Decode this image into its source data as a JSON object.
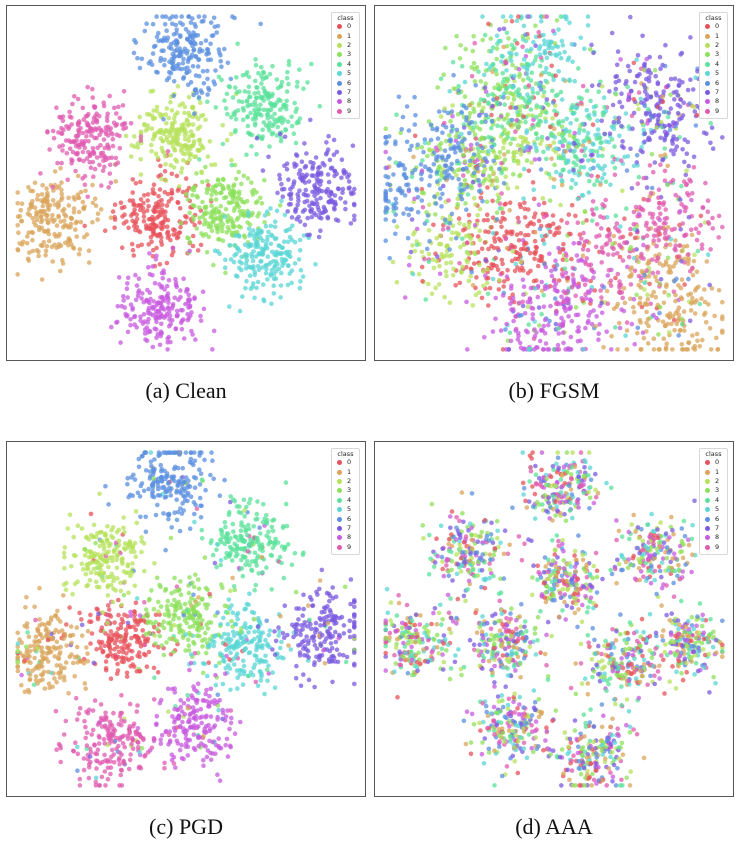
{
  "palette": [
    "#e8505a",
    "#d9a45a",
    "#b5e15a",
    "#8ce05a",
    "#5ae29a",
    "#5ad6d6",
    "#5a8fe0",
    "#7a5ae0",
    "#c85ae0",
    "#e05ab0"
  ],
  "legend": {
    "title": "class",
    "labels": [
      "0",
      "1",
      "2",
      "3",
      "4",
      "5",
      "6",
      "7",
      "8",
      "9"
    ]
  },
  "panels": [
    {
      "caption": "(a) Clean"
    },
    {
      "caption": "(b) FGSM"
    },
    {
      "caption": "(c) PGD"
    },
    {
      "caption": "(d) AAA"
    }
  ],
  "chart_data": [
    {
      "type": "scatter",
      "title": "",
      "xlabel": "",
      "ylabel": "",
      "grid": false,
      "legend_position": "top-right",
      "legend_title": "class",
      "series": [
        {
          "name": "0",
          "cluster_centers": [
            [
              0.42,
              0.6
            ]
          ]
        },
        {
          "name": "1",
          "cluster_centers": [
            [
              0.13,
              0.6
            ]
          ]
        },
        {
          "name": "2",
          "cluster_centers": [
            [
              0.47,
              0.37
            ]
          ]
        },
        {
          "name": "3",
          "cluster_centers": [
            [
              0.61,
              0.57
            ]
          ]
        },
        {
          "name": "4",
          "cluster_centers": [
            [
              0.72,
              0.28
            ]
          ]
        },
        {
          "name": "5",
          "cluster_centers": [
            [
              0.72,
              0.71
            ]
          ]
        },
        {
          "name": "6",
          "cluster_centers": [
            [
              0.5,
              0.13
            ]
          ]
        },
        {
          "name": "7",
          "cluster_centers": [
            [
              0.87,
              0.51
            ]
          ]
        },
        {
          "name": "8",
          "cluster_centers": [
            [
              0.43,
              0.86
            ]
          ]
        },
        {
          "name": "9",
          "cluster_centers": [
            [
              0.23,
              0.37
            ]
          ]
        }
      ]
    },
    {
      "type": "scatter",
      "title": "",
      "xlabel": "",
      "ylabel": "",
      "grid": false,
      "legend_position": "top-right",
      "legend_title": "class",
      "series": [
        {
          "name": "0",
          "cluster_centers": [
            [
              0.34,
              0.67
            ],
            [
              0.44,
              0.7
            ]
          ]
        },
        {
          "name": "1",
          "cluster_centers": [
            [
              0.8,
              0.75
            ],
            [
              0.82,
              0.88
            ]
          ]
        },
        {
          "name": "2",
          "cluster_centers": [
            [
              0.2,
              0.7
            ],
            [
              0.38,
              0.4
            ]
          ]
        },
        {
          "name": "3",
          "cluster_centers": [
            [
              0.25,
              0.45
            ],
            [
              0.35,
              0.25
            ]
          ]
        },
        {
          "name": "4",
          "cluster_centers": [
            [
              0.4,
              0.25
            ],
            [
              0.55,
              0.35
            ]
          ]
        },
        {
          "name": "5",
          "cluster_centers": [
            [
              0.45,
              0.12
            ],
            [
              0.6,
              0.4
            ]
          ]
        },
        {
          "name": "6",
          "cluster_centers": [
            [
              0.2,
              0.4
            ],
            [
              0.1,
              0.52
            ]
          ]
        },
        {
          "name": "7",
          "cluster_centers": [
            [
              0.75,
              0.25
            ],
            [
              0.82,
              0.32
            ]
          ]
        },
        {
          "name": "8",
          "cluster_centers": [
            [
              0.56,
              0.85
            ],
            [
              0.45,
              0.88
            ]
          ]
        },
        {
          "name": "9",
          "cluster_centers": [
            [
              0.82,
              0.58
            ],
            [
              0.68,
              0.68
            ]
          ]
        }
      ]
    },
    {
      "type": "scatter",
      "title": "",
      "xlabel": "",
      "ylabel": "",
      "grid": false,
      "legend_position": "top-right",
      "legend_title": "class",
      "series": [
        {
          "name": "0",
          "cluster_centers": [
            [
              0.33,
              0.55
            ]
          ]
        },
        {
          "name": "1",
          "cluster_centers": [
            [
              0.11,
              0.6
            ]
          ]
        },
        {
          "name": "2",
          "cluster_centers": [
            [
              0.28,
              0.33
            ]
          ]
        },
        {
          "name": "3",
          "cluster_centers": [
            [
              0.5,
              0.49
            ]
          ]
        },
        {
          "name": "4",
          "cluster_centers": [
            [
              0.68,
              0.28
            ]
          ]
        },
        {
          "name": "5",
          "cluster_centers": [
            [
              0.66,
              0.58
            ]
          ]
        },
        {
          "name": "6",
          "cluster_centers": [
            [
              0.46,
              0.11
            ]
          ]
        },
        {
          "name": "7",
          "cluster_centers": [
            [
              0.88,
              0.54
            ]
          ]
        },
        {
          "name": "8",
          "cluster_centers": [
            [
              0.52,
              0.8
            ]
          ]
        },
        {
          "name": "9",
          "cluster_centers": [
            [
              0.29,
              0.86
            ]
          ]
        }
      ]
    },
    {
      "type": "scatter",
      "title": "",
      "xlabel": "",
      "ylabel": "",
      "grid": false,
      "legend_position": "top-right",
      "legend_title": "class",
      "series": [
        {
          "name": "0",
          "cluster_centers": [
            [
              0.11,
              0.57
            ]
          ]
        },
        {
          "name": "1",
          "cluster_centers": [
            [
              0.36,
              0.57
            ]
          ]
        },
        {
          "name": "2",
          "cluster_centers": [
            [
              0.26,
              0.31
            ]
          ]
        },
        {
          "name": "3",
          "cluster_centers": [
            [
              0.38,
              0.81
            ]
          ]
        },
        {
          "name": "4",
          "cluster_centers": [
            [
              0.78,
              0.31
            ]
          ]
        },
        {
          "name": "5",
          "cluster_centers": [
            [
              0.61,
              0.88
            ]
          ]
        },
        {
          "name": "6",
          "cluster_centers": [
            [
              0.52,
              0.13
            ]
          ]
        },
        {
          "name": "7",
          "cluster_centers": [
            [
              0.87,
              0.57
            ]
          ]
        },
        {
          "name": "8",
          "cluster_centers": [
            [
              0.69,
              0.62
            ]
          ]
        },
        {
          "name": "9",
          "cluster_centers": [
            [
              0.53,
              0.39
            ]
          ]
        }
      ]
    }
  ]
}
